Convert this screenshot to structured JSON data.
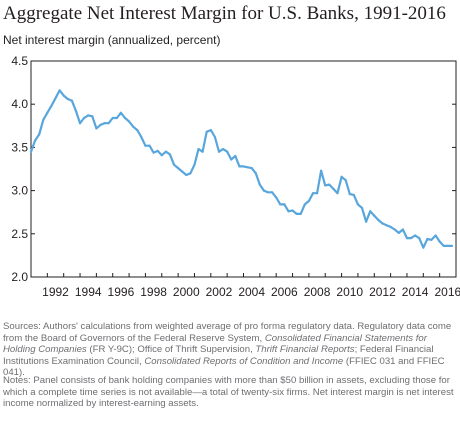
{
  "chart_data": {
    "type": "line",
    "title": "Aggregate Net Interest Margin for U.S. Banks, 1991-2016",
    "ylabel": "Net interest margin (annualized, percent)",
    "xlabel": "",
    "ylim": [
      2.0,
      4.5
    ],
    "xlim": [
      1991.0,
      2017.0
    ],
    "yticks": [
      "2.0",
      "2.5",
      "3.0",
      "3.5",
      "4.0",
      "4.5"
    ],
    "xticks": [
      "1992",
      "1994",
      "1996",
      "1998",
      "2000",
      "2002",
      "2004",
      "2006",
      "2008",
      "2010",
      "2012",
      "2014",
      "2016"
    ],
    "grid": false,
    "legend": "none",
    "color": "#58a6dc",
    "series": [
      {
        "name": "",
        "x": [
          1991.0,
          1991.25,
          1991.5,
          1991.75,
          1992.0,
          1992.25,
          1992.5,
          1992.75,
          1993.0,
          1993.25,
          1993.5,
          1993.75,
          1994.0,
          1994.25,
          1994.5,
          1994.75,
          1995.0,
          1995.25,
          1995.5,
          1995.75,
          1996.0,
          1996.25,
          1996.5,
          1996.75,
          1997.0,
          1997.25,
          1997.5,
          1997.75,
          1998.0,
          1998.25,
          1998.5,
          1998.75,
          1999.0,
          1999.25,
          1999.5,
          1999.75,
          2000.0,
          2000.25,
          2000.5,
          2000.75,
          2001.0,
          2001.25,
          2001.5,
          2001.75,
          2002.0,
          2002.25,
          2002.5,
          2002.75,
          2003.0,
          2003.25,
          2003.5,
          2003.75,
          2004.0,
          2004.25,
          2004.5,
          2004.75,
          2005.0,
          2005.25,
          2005.5,
          2005.75,
          2006.0,
          2006.25,
          2006.5,
          2006.75,
          2007.0,
          2007.25,
          2007.5,
          2007.75,
          2008.0,
          2008.25,
          2008.5,
          2008.75,
          2009.0,
          2009.25,
          2009.5,
          2009.75,
          2010.0,
          2010.25,
          2010.5,
          2010.75,
          2011.0,
          2011.25,
          2011.5,
          2011.75,
          2012.0,
          2012.25,
          2012.5,
          2012.75,
          2013.0,
          2013.25,
          2013.5,
          2013.75,
          2014.0,
          2014.25,
          2014.5,
          2014.75,
          2015.0,
          2015.25,
          2015.5,
          2015.75,
          2016.0,
          2016.25,
          2016.5,
          2016.75
        ],
        "values": [
          3.45,
          3.58,
          3.65,
          3.82,
          3.9,
          3.98,
          4.07,
          4.16,
          4.1,
          4.06,
          4.04,
          3.92,
          3.78,
          3.84,
          3.87,
          3.86,
          3.72,
          3.76,
          3.78,
          3.78,
          3.84,
          3.84,
          3.9,
          3.84,
          3.8,
          3.74,
          3.7,
          3.62,
          3.52,
          3.52,
          3.44,
          3.46,
          3.41,
          3.45,
          3.42,
          3.3,
          3.26,
          3.22,
          3.18,
          3.2,
          3.3,
          3.48,
          3.45,
          3.68,
          3.7,
          3.62,
          3.45,
          3.48,
          3.45,
          3.36,
          3.4,
          3.28,
          3.28,
          3.27,
          3.26,
          3.2,
          3.07,
          3.0,
          2.98,
          2.98,
          2.92,
          2.84,
          2.84,
          2.76,
          2.77,
          2.73,
          2.73,
          2.84,
          2.88,
          2.97,
          2.97,
          3.23,
          3.06,
          3.07,
          3.02,
          2.97,
          3.16,
          3.12,
          2.96,
          2.95,
          2.84,
          2.8,
          2.64,
          2.76,
          2.71,
          2.66,
          2.62,
          2.6,
          2.58,
          2.55,
          2.51,
          2.55,
          2.45,
          2.45,
          2.48,
          2.45,
          2.34,
          2.44,
          2.43,
          2.48,
          2.41,
          2.36,
          2.36,
          2.36
        ]
      }
    ]
  },
  "sources": {
    "lead": "Sources: Authors' calculations from weighted average of pro forma regulatory data. Regulatory data come from the Board of Governors of the Federal Reserve System, ",
    "title1": "Consolidated Financial Statements for Holding Companies",
    "mid1": " (FR Y-9C); Office of Thrift Supervision, ",
    "title2": "Thrift Financial Reports",
    "mid2": "; Federal Financial Institutions Examination Council, ",
    "title3": "Consolidated Reports of Condition and Income",
    "tail": " (FFIEC 031 and FFIEC 041)."
  },
  "notes": "Notes: Panel consists of bank holding companies with more than $50 billion in assets, excluding those for which a complete time series is not available—a total of twenty-six firms. Net interest margin is net interest income normalized by interest-earning assets."
}
